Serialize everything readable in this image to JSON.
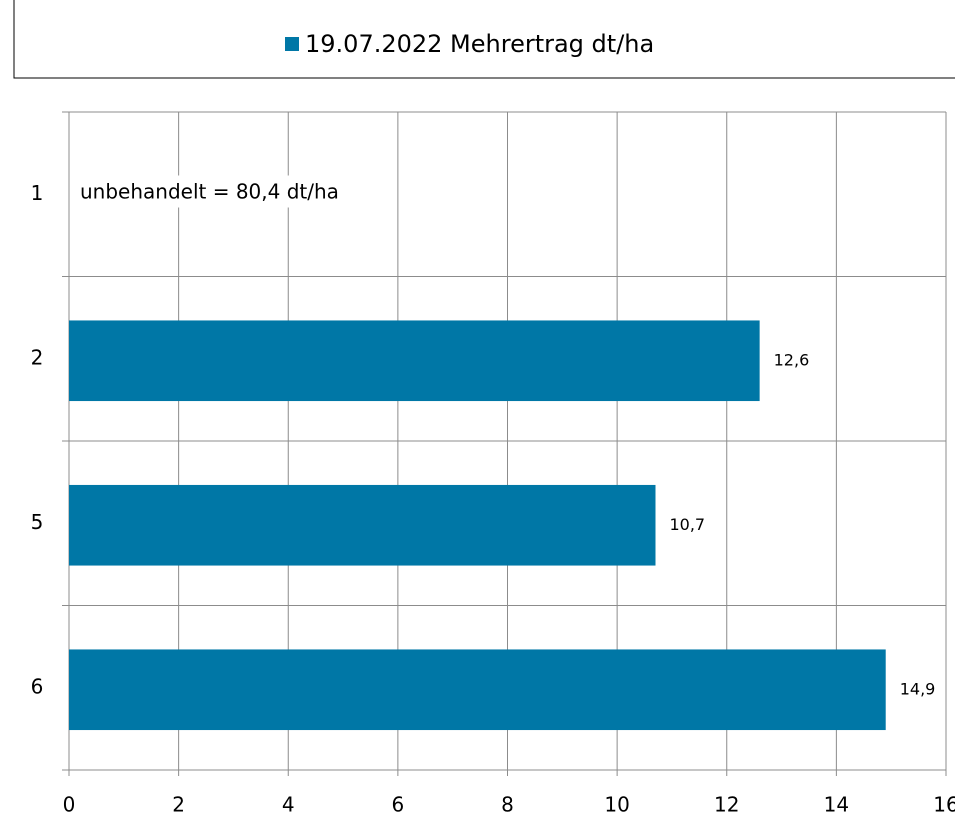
{
  "chart_data": {
    "type": "bar",
    "orientation": "horizontal",
    "categories": [
      "1",
      "2",
      "5",
      "6"
    ],
    "series": [
      {
        "name": "19.07.2022 Mehrertrag dt/ha",
        "color": "#0077a6",
        "values": [
          null,
          12.6,
          10.7,
          14.9
        ],
        "value_labels": [
          null,
          "12,6",
          "10,7",
          "14,9"
        ]
      }
    ],
    "annotations": [
      "unbehandelt = 80,4 dt/ha"
    ],
    "xlim": [
      0,
      16
    ],
    "xticks": [
      0,
      2,
      4,
      6,
      8,
      10,
      12,
      14,
      16
    ],
    "grid": true,
    "legend": "top"
  }
}
